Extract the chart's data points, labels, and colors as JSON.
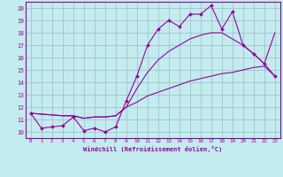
{
  "xlabel": "Windchill (Refroidissement éolien,°C)",
  "xlim": [
    -0.5,
    23.5
  ],
  "ylim": [
    9.5,
    20.5
  ],
  "xticks": [
    0,
    1,
    2,
    3,
    4,
    5,
    6,
    7,
    8,
    9,
    10,
    11,
    12,
    13,
    14,
    15,
    16,
    17,
    18,
    19,
    20,
    21,
    22,
    23
  ],
  "yticks": [
    10,
    11,
    12,
    13,
    14,
    15,
    16,
    17,
    18,
    19,
    20
  ],
  "bg_color": "#c2ecee",
  "line_color": "#990099",
  "grid_color": "#a0b8cc",
  "line1_x": [
    0,
    1,
    2,
    3,
    4,
    5,
    6,
    7,
    8,
    9,
    10,
    11,
    12,
    13,
    14,
    15,
    16,
    17,
    18,
    19,
    20,
    21,
    22,
    23
  ],
  "line1_y": [
    11.5,
    10.3,
    10.4,
    10.5,
    11.2,
    10.1,
    10.3,
    10.0,
    10.4,
    12.5,
    14.5,
    17.0,
    18.3,
    19.0,
    18.5,
    19.5,
    19.5,
    20.2,
    18.3,
    19.7,
    17.0,
    16.3,
    15.5,
    14.5
  ],
  "line2_x": [
    0,
    3,
    4,
    5,
    6,
    7,
    8,
    9,
    10,
    11,
    12,
    13,
    14,
    15,
    16,
    17,
    18,
    19,
    20,
    21,
    22,
    23
  ],
  "line2_y": [
    11.5,
    11.3,
    11.3,
    11.1,
    11.2,
    11.2,
    11.3,
    12.0,
    12.4,
    12.9,
    13.2,
    13.5,
    13.8,
    14.1,
    14.3,
    14.5,
    14.7,
    14.8,
    15.0,
    15.2,
    15.3,
    14.5
  ],
  "line3_x": [
    0,
    3,
    4,
    5,
    6,
    7,
    8,
    9,
    10,
    11,
    12,
    13,
    14,
    15,
    16,
    17,
    18,
    19,
    20,
    21,
    22,
    23
  ],
  "line3_y": [
    11.5,
    11.3,
    11.3,
    11.1,
    11.2,
    11.2,
    11.3,
    12.0,
    13.5,
    14.8,
    15.8,
    16.5,
    17.0,
    17.5,
    17.8,
    18.0,
    18.0,
    17.5,
    17.0,
    16.3,
    15.5,
    18.0
  ]
}
